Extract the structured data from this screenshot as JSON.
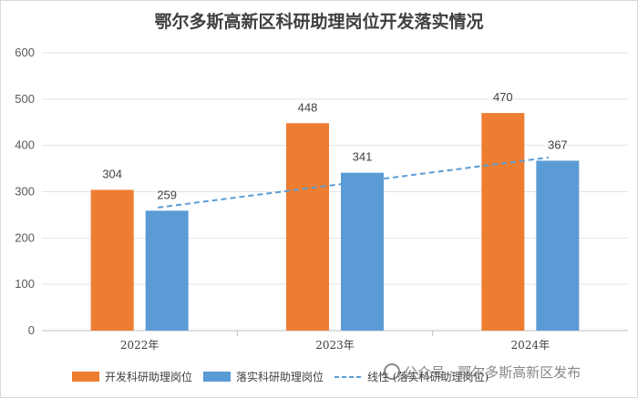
{
  "chart_data": {
    "type": "bar",
    "title": "鄂尔多斯高新区科研助理岗位开发落实情况",
    "categories": [
      "2022年",
      "2023年",
      "2024年"
    ],
    "series": [
      {
        "name": "开发科研助理岗位",
        "values": [
          304,
          448,
          470
        ],
        "color": "#ED7D31"
      },
      {
        "name": "落实科研助理岗位",
        "values": [
          259,
          341,
          367
        ],
        "color": "#5B9BD5"
      }
    ],
    "trendline": {
      "name": "线性 (落实科研助理岗位)",
      "color": "#5B9BD5",
      "style": "dashed"
    },
    "ylim": [
      0,
      600
    ],
    "yticks": [
      0,
      100,
      200,
      300,
      400,
      500,
      600
    ],
    "xlabel": "",
    "ylabel": "",
    "grid": true,
    "legend": "bottom"
  },
  "watermark": {
    "text": "公众号 · 鄂尔多斯高新区发布"
  }
}
